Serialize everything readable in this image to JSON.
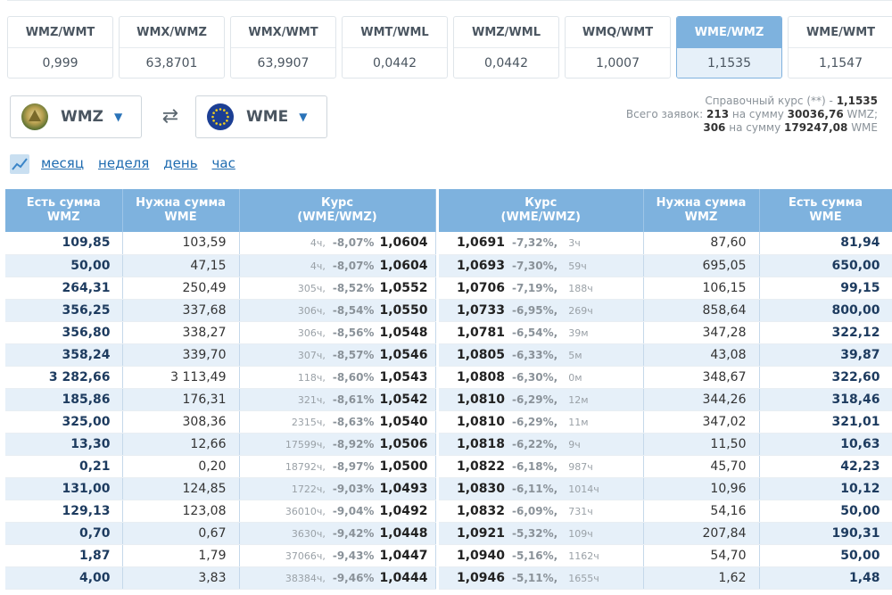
{
  "pairs": [
    {
      "name": "WMZ/WMT",
      "rate": "0,999"
    },
    {
      "name": "WMX/WMZ",
      "rate": "63,8701"
    },
    {
      "name": "WMX/WMT",
      "rate": "63,9907"
    },
    {
      "name": "WMT/WML",
      "rate": "0,0442"
    },
    {
      "name": "WMZ/WML",
      "rate": "0,0442"
    },
    {
      "name": "WMQ/WMT",
      "rate": "1,0007"
    },
    {
      "name": "WME/WMZ",
      "rate": "1,1535",
      "active": true
    },
    {
      "name": "WME/WMT",
      "rate": "1,1547"
    }
  ],
  "selector": {
    "from": "WMZ",
    "to": "WME"
  },
  "info": {
    "ref_label": "Справочный курс (**) -",
    "ref_value": "1,1535",
    "total_label": "Всего заявок:",
    "left_count": "213",
    "left_sum_label": "на сумму",
    "left_sum": "30036,76",
    "left_cur": "WMZ;",
    "right_count": "306",
    "right_sum_label": "на сумму",
    "right_sum": "179247,08",
    "right_cur": "WME"
  },
  "periods": [
    "месяц",
    "неделя",
    "день",
    "час"
  ],
  "left_table": {
    "headers": [
      "Есть сумма\nWMZ",
      "Нужна сумма\nWME",
      "Курс\n(WME/WMZ)"
    ],
    "rows": [
      {
        "have": "109,85",
        "need": "103,59",
        "age": "4ч,",
        "pct": "-8,07%",
        "rate": "1,0604"
      },
      {
        "have": "50,00",
        "need": "47,15",
        "age": "4ч,",
        "pct": "-8,07%",
        "rate": "1,0604"
      },
      {
        "have": "264,31",
        "need": "250,49",
        "age": "305ч,",
        "pct": "-8,52%",
        "rate": "1,0552"
      },
      {
        "have": "356,25",
        "need": "337,68",
        "age": "306ч,",
        "pct": "-8,54%",
        "rate": "1,0550"
      },
      {
        "have": "356,80",
        "need": "338,27",
        "age": "306ч,",
        "pct": "-8,56%",
        "rate": "1,0548"
      },
      {
        "have": "358,24",
        "need": "339,70",
        "age": "307ч,",
        "pct": "-8,57%",
        "rate": "1,0546"
      },
      {
        "have": "3 282,66",
        "need": "3 113,49",
        "age": "118ч,",
        "pct": "-8,60%",
        "rate": "1,0543"
      },
      {
        "have": "185,86",
        "need": "176,31",
        "age": "321ч,",
        "pct": "-8,61%",
        "rate": "1,0542"
      },
      {
        "have": "325,00",
        "need": "308,36",
        "age": "2315ч,",
        "pct": "-8,63%",
        "rate": "1,0540"
      },
      {
        "have": "13,30",
        "need": "12,66",
        "age": "17599ч,",
        "pct": "-8,92%",
        "rate": "1,0506"
      },
      {
        "have": "0,21",
        "need": "0,20",
        "age": "18792ч,",
        "pct": "-8,97%",
        "rate": "1,0500"
      },
      {
        "have": "131,00",
        "need": "124,85",
        "age": "1722ч,",
        "pct": "-9,03%",
        "rate": "1,0493"
      },
      {
        "have": "129,13",
        "need": "123,08",
        "age": "36010ч,",
        "pct": "-9,04%",
        "rate": "1,0492"
      },
      {
        "have": "0,70",
        "need": "0,67",
        "age": "3630ч,",
        "pct": "-9,42%",
        "rate": "1,0448"
      },
      {
        "have": "1,87",
        "need": "1,79",
        "age": "37066ч,",
        "pct": "-9,43%",
        "rate": "1,0447"
      },
      {
        "have": "4,00",
        "need": "3,83",
        "age": "38384ч,",
        "pct": "-9,46%",
        "rate": "1,0444"
      }
    ]
  },
  "right_table": {
    "headers": [
      "Курс\n(WME/WMZ)",
      "Нужна сумма\nWMZ",
      "Есть сумма\nWME"
    ],
    "rows": [
      {
        "rate": "1,0691",
        "pct": "-7,32%,",
        "age": "3ч",
        "need": "87,60",
        "have": "81,94"
      },
      {
        "rate": "1,0693",
        "pct": "-7,30%,",
        "age": "59ч",
        "need": "695,05",
        "have": "650,00"
      },
      {
        "rate": "1,0706",
        "pct": "-7,19%,",
        "age": "188ч",
        "need": "106,15",
        "have": "99,15"
      },
      {
        "rate": "1,0733",
        "pct": "-6,95%,",
        "age": "269ч",
        "need": "858,64",
        "have": "800,00"
      },
      {
        "rate": "1,0781",
        "pct": "-6,54%,",
        "age": "39м",
        "need": "347,28",
        "have": "322,12"
      },
      {
        "rate": "1,0805",
        "pct": "-6,33%,",
        "age": "5м",
        "need": "43,08",
        "have": "39,87"
      },
      {
        "rate": "1,0808",
        "pct": "-6,30%,",
        "age": "0м",
        "need": "348,67",
        "have": "322,60"
      },
      {
        "rate": "1,0810",
        "pct": "-6,29%,",
        "age": "12м",
        "need": "344,26",
        "have": "318,46"
      },
      {
        "rate": "1,0810",
        "pct": "-6,29%,",
        "age": "11м",
        "need": "347,02",
        "have": "321,01"
      },
      {
        "rate": "1,0818",
        "pct": "-6,22%,",
        "age": "9ч",
        "need": "11,50",
        "have": "10,63"
      },
      {
        "rate": "1,0822",
        "pct": "-6,18%,",
        "age": "987ч",
        "need": "45,70",
        "have": "42,23"
      },
      {
        "rate": "1,0830",
        "pct": "-6,11%,",
        "age": "1014ч",
        "need": "10,96",
        "have": "10,12"
      },
      {
        "rate": "1,0832",
        "pct": "-6,09%,",
        "age": "731ч",
        "need": "54,16",
        "have": "50,00"
      },
      {
        "rate": "1,0921",
        "pct": "-5,32%,",
        "age": "109ч",
        "need": "207,84",
        "have": "190,31"
      },
      {
        "rate": "1,0940",
        "pct": "-5,16%,",
        "age": "1162ч",
        "need": "54,70",
        "have": "50,00"
      },
      {
        "rate": "1,0946",
        "pct": "-5,11%,",
        "age": "1655ч",
        "need": "1,62",
        "have": "1,48"
      }
    ]
  }
}
